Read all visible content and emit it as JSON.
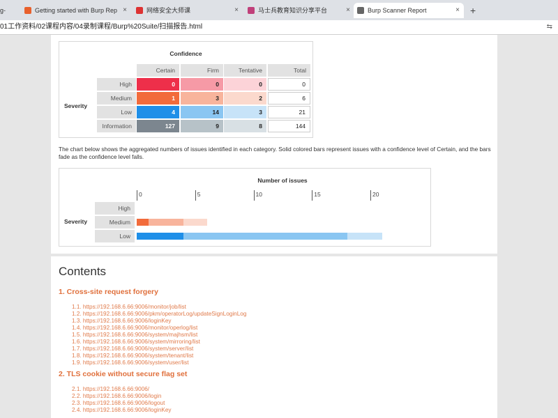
{
  "browser": {
    "tabs": [
      "g-",
      "Getting started with Burp Rep",
      "网络安全大师课",
      "马士兵教育知识分享平台",
      "Burp Scanner Report"
    ],
    "address": "01工作资料/02课程内容/04录制课程/Burp%20Suite/扫描报告.html"
  },
  "summary_table": {
    "title": "Confidence",
    "row_header": "Severity",
    "columns": [
      "Certain",
      "Firm",
      "Tentative",
      "Total"
    ],
    "rows": [
      {
        "label": "High",
        "values": [
          0,
          0,
          0,
          0
        ]
      },
      {
        "label": "Medium",
        "values": [
          1,
          3,
          2,
          6
        ]
      },
      {
        "label": "Low",
        "values": [
          4,
          14,
          3,
          21
        ]
      },
      {
        "label": "Information",
        "values": [
          127,
          9,
          8,
          144
        ]
      }
    ]
  },
  "description": "The chart below shows the aggregated numbers of issues identified in each category. Solid colored bars represent issues with a confidence level of Certain, and the bars fade as the confidence level falls.",
  "issues_chart": {
    "title": "Number of issues",
    "row_header": "Severity",
    "ticks": [
      0,
      5,
      10,
      15,
      20
    ]
  },
  "contents": {
    "title": "Contents",
    "sections": [
      {
        "heading": "1. Cross-site request forgery",
        "items": [
          "1.1. https://192.168.6.66:9006/monitor/job/list",
          "1.2. https://192.168.6.66:9006/pkm/operatorLog/updateSignLoginLog",
          "1.3. https://192.168.6.66:9006/loginKey",
          "1.4. https://192.168.6.66:9006/monitor/operlog/list",
          "1.5. https://192.168.6.66:9006/system/majhsm/list",
          "1.6. https://192.168.6.66:9006/system/mirroring/list",
          "1.7. https://192.168.6.66:9006/system/server/list",
          "1.8. https://192.168.6.66:9006/system/tenant/list",
          "1.9. https://192.168.6.66:9006/system/user/list"
        ]
      },
      {
        "heading": "2. TLS cookie without secure flag set",
        "items": [
          "2.1. https://192.168.6.66:9006/",
          "2.2. https://192.168.6.66:9006/login",
          "2.3. https://192.168.6.66:9006/logout",
          "2.4. https://192.168.6.66:9006/loginKey"
        ]
      }
    ]
  }
}
